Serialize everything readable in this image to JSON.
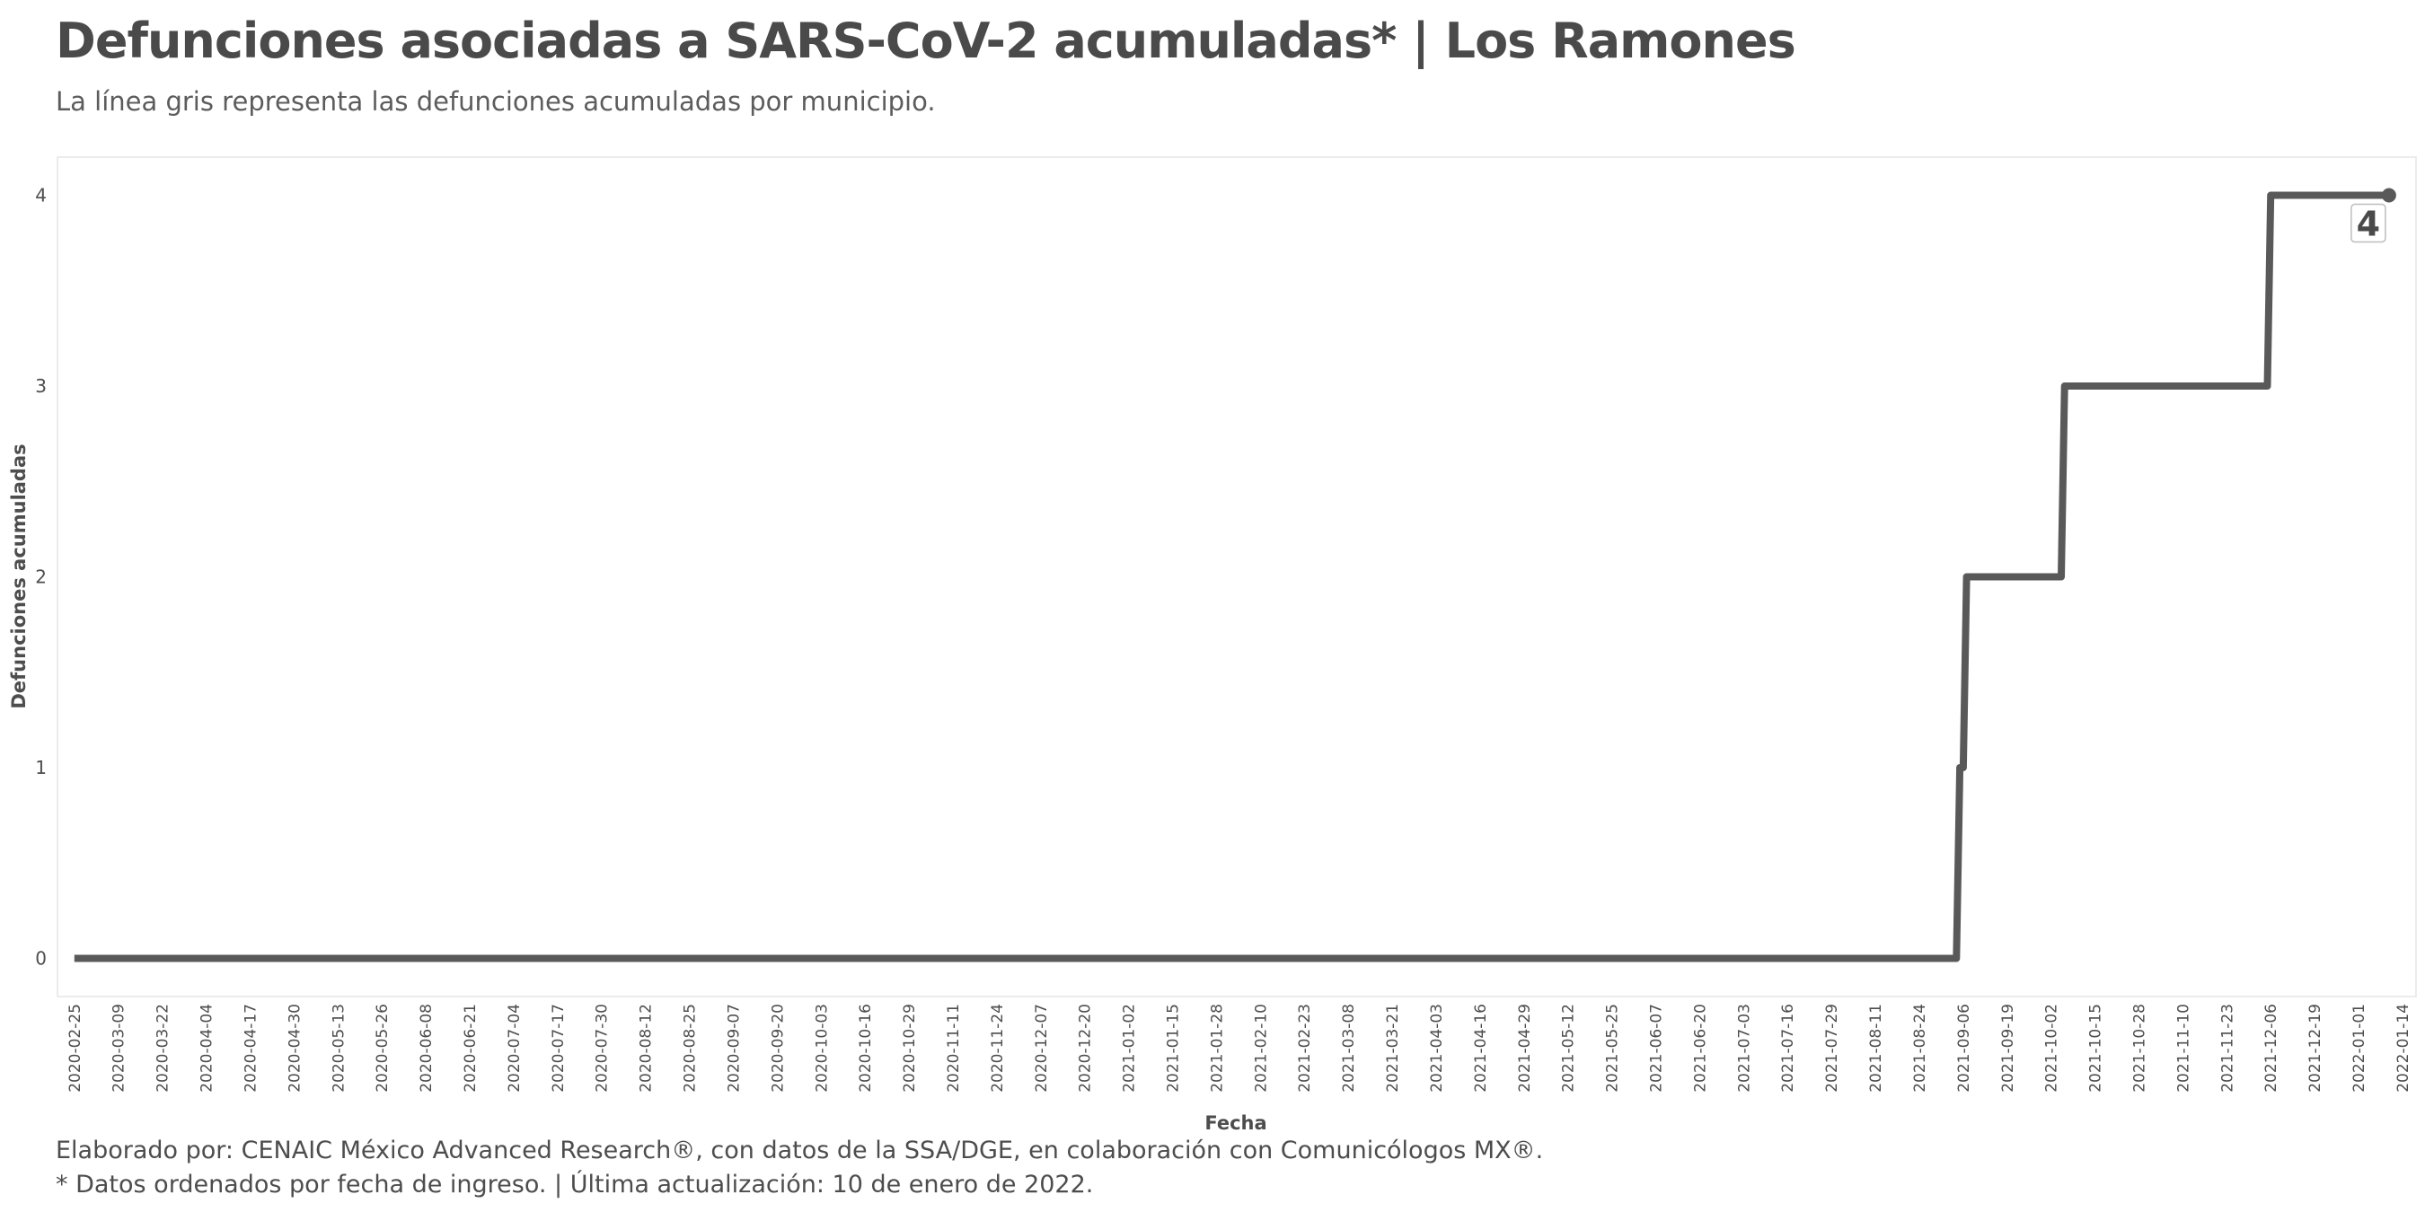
{
  "title": "Defunciones asociadas a SARS-CoV-2 acumuladas* | Los Ramones",
  "subtitle": "La línea gris representa las defunciones acumuladas por municipio.",
  "caption_line1": "Elaborado por: CENAIC México Advanced Research®, con datos de la SSA/DGE, en colaboración con Comunicólogos MX®.",
  "caption_line2": "* Datos ordenados por fecha de ingreso. | Última actualización: 10 de enero de 2022.",
  "colors": {
    "line": "#595959",
    "panel_border": "#e6e6e6",
    "text": "#4d4d4d"
  },
  "chart_data": {
    "type": "line",
    "title": "Defunciones asociadas a SARS-CoV-2 acumuladas* | Los Ramones",
    "subtitle": "La línea gris representa las defunciones acumuladas por municipio.",
    "xlabel": "Fecha",
    "ylabel": "Defunciones acumuladas",
    "xlim": [
      "2020-02-20",
      "2022-01-18"
    ],
    "ylim": [
      -0.2,
      4.2
    ],
    "y_ticks": [
      0,
      1,
      2,
      3,
      4
    ],
    "x_ticks": [
      "2020-02-25",
      "2020-03-09",
      "2020-03-22",
      "2020-04-04",
      "2020-04-17",
      "2020-04-30",
      "2020-05-13",
      "2020-05-26",
      "2020-06-08",
      "2020-06-21",
      "2020-07-04",
      "2020-07-17",
      "2020-07-30",
      "2020-08-12",
      "2020-08-25",
      "2020-09-07",
      "2020-09-20",
      "2020-10-03",
      "2020-10-16",
      "2020-10-29",
      "2020-11-11",
      "2020-11-24",
      "2020-12-07",
      "2020-12-20",
      "2021-01-02",
      "2021-01-15",
      "2021-01-28",
      "2021-02-10",
      "2021-02-23",
      "2021-03-08",
      "2021-03-21",
      "2021-04-03",
      "2021-04-16",
      "2021-04-29",
      "2021-05-12",
      "2021-05-25",
      "2021-06-07",
      "2021-06-20",
      "2021-07-03",
      "2021-07-16",
      "2021-07-29",
      "2021-08-11",
      "2021-08-24",
      "2021-09-06",
      "2021-09-19",
      "2021-10-02",
      "2021-10-15",
      "2021-10-28",
      "2021-11-10",
      "2021-11-23",
      "2021-12-06",
      "2021-12-19",
      "2022-01-01",
      "2022-01-14"
    ],
    "grid": false,
    "series": [
      {
        "x": [
          "2020-02-25",
          "2021-09-04",
          "2021-09-05",
          "2021-09-06",
          "2021-09-07",
          "2021-10-05",
          "2021-10-06",
          "2021-12-05",
          "2021-12-06",
          "2022-01-10"
        ],
        "values": [
          0,
          0,
          1,
          1,
          2,
          2,
          3,
          3,
          4,
          4
        ]
      }
    ],
    "annotations": [
      {
        "x": "2022-01-10",
        "y": 4,
        "text": "4"
      }
    ]
  }
}
